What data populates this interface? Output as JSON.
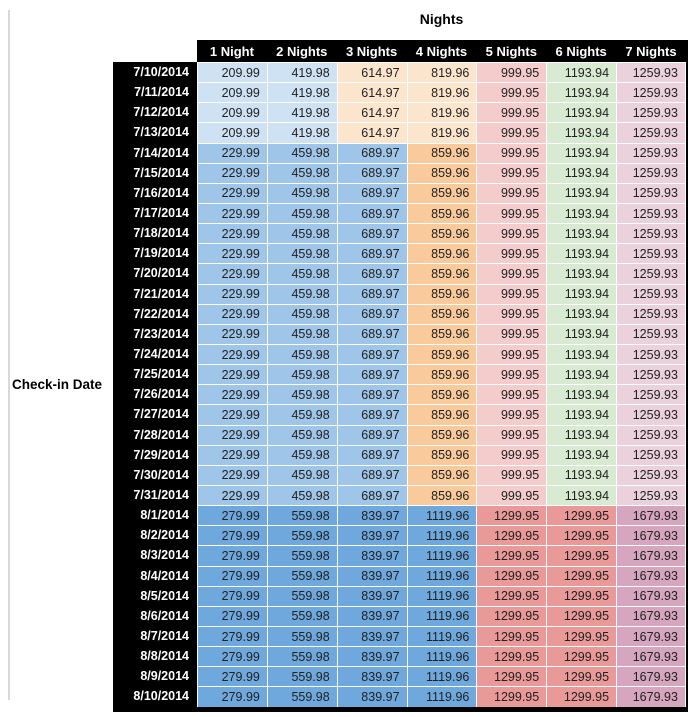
{
  "page": {
    "title": "Nights",
    "row_axis_label": "Check-in Date"
  },
  "palette": {
    "header_bg": "#000000",
    "header_text": "#ffffff",
    "blue_light": "#cfe2f3",
    "blue_medium": "#9fc5e8",
    "blue_dark": "#6fa8dc",
    "orange_light": "#fce5cd",
    "orange_medium": "#f9cb9c",
    "red_light": "#f4cccc",
    "red_medium": "#ea9999",
    "green_light": "#d9ead3",
    "magenta_light": "#ead1dc",
    "magenta_medium": "#d5a6bd"
  },
  "chart_data": {
    "type": "table",
    "title": "Nights",
    "row_axis_label": "Check-in Date",
    "columns": [
      "1 Night",
      "2 Nights",
      "3 Nights",
      "4 Nights",
      "5 Nights",
      "6 Nights",
      "7 Nights"
    ],
    "rows": [
      {
        "date": "7/10/2014",
        "values": [
          "209.99",
          "419.98",
          "614.97",
          "819.96",
          "999.95",
          "1193.94",
          "1259.93"
        ],
        "colors": [
          "blue_light",
          "blue_light",
          "orange_light",
          "orange_light",
          "red_light",
          "green_light",
          "magenta_light"
        ]
      },
      {
        "date": "7/11/2014",
        "values": [
          "209.99",
          "419.98",
          "614.97",
          "819.96",
          "999.95",
          "1193.94",
          "1259.93"
        ],
        "colors": [
          "blue_light",
          "blue_light",
          "orange_light",
          "orange_light",
          "red_light",
          "green_light",
          "magenta_light"
        ]
      },
      {
        "date": "7/12/2014",
        "values": [
          "209.99",
          "419.98",
          "614.97",
          "819.96",
          "999.95",
          "1193.94",
          "1259.93"
        ],
        "colors": [
          "blue_light",
          "blue_light",
          "orange_light",
          "orange_light",
          "red_light",
          "green_light",
          "magenta_light"
        ]
      },
      {
        "date": "7/13/2014",
        "values": [
          "209.99",
          "419.98",
          "614.97",
          "819.96",
          "999.95",
          "1193.94",
          "1259.93"
        ],
        "colors": [
          "blue_light",
          "blue_light",
          "orange_light",
          "orange_light",
          "red_light",
          "green_light",
          "magenta_light"
        ]
      },
      {
        "date": "7/14/2014",
        "values": [
          "229.99",
          "459.98",
          "689.97",
          "859.96",
          "999.95",
          "1193.94",
          "1259.93"
        ],
        "colors": [
          "blue_medium",
          "blue_medium",
          "blue_medium",
          "orange_medium",
          "red_light",
          "green_light",
          "magenta_light"
        ]
      },
      {
        "date": "7/15/2014",
        "values": [
          "229.99",
          "459.98",
          "689.97",
          "859.96",
          "999.95",
          "1193.94",
          "1259.93"
        ],
        "colors": [
          "blue_medium",
          "blue_medium",
          "blue_medium",
          "orange_medium",
          "red_light",
          "green_light",
          "magenta_light"
        ]
      },
      {
        "date": "7/16/2014",
        "values": [
          "229.99",
          "459.98",
          "689.97",
          "859.96",
          "999.95",
          "1193.94",
          "1259.93"
        ],
        "colors": [
          "blue_medium",
          "blue_medium",
          "blue_medium",
          "orange_medium",
          "red_light",
          "green_light",
          "magenta_light"
        ]
      },
      {
        "date": "7/17/2014",
        "values": [
          "229.99",
          "459.98",
          "689.97",
          "859.96",
          "999.95",
          "1193.94",
          "1259.93"
        ],
        "colors": [
          "blue_medium",
          "blue_medium",
          "blue_medium",
          "orange_medium",
          "red_light",
          "green_light",
          "magenta_light"
        ]
      },
      {
        "date": "7/18/2014",
        "values": [
          "229.99",
          "459.98",
          "689.97",
          "859.96",
          "999.95",
          "1193.94",
          "1259.93"
        ],
        "colors": [
          "blue_medium",
          "blue_medium",
          "blue_medium",
          "orange_medium",
          "red_light",
          "green_light",
          "magenta_light"
        ]
      },
      {
        "date": "7/19/2014",
        "values": [
          "229.99",
          "459.98",
          "689.97",
          "859.96",
          "999.95",
          "1193.94",
          "1259.93"
        ],
        "colors": [
          "blue_medium",
          "blue_medium",
          "blue_medium",
          "orange_medium",
          "red_light",
          "green_light",
          "magenta_light"
        ]
      },
      {
        "date": "7/20/2014",
        "values": [
          "229.99",
          "459.98",
          "689.97",
          "859.96",
          "999.95",
          "1193.94",
          "1259.93"
        ],
        "colors": [
          "blue_medium",
          "blue_medium",
          "blue_medium",
          "orange_medium",
          "red_light",
          "green_light",
          "magenta_light"
        ]
      },
      {
        "date": "7/21/2014",
        "values": [
          "229.99",
          "459.98",
          "689.97",
          "859.96",
          "999.95",
          "1193.94",
          "1259.93"
        ],
        "colors": [
          "blue_medium",
          "blue_medium",
          "blue_medium",
          "orange_medium",
          "red_light",
          "green_light",
          "magenta_light"
        ]
      },
      {
        "date": "7/22/2014",
        "values": [
          "229.99",
          "459.98",
          "689.97",
          "859.96",
          "999.95",
          "1193.94",
          "1259.93"
        ],
        "colors": [
          "blue_medium",
          "blue_medium",
          "blue_medium",
          "orange_medium",
          "red_light",
          "green_light",
          "magenta_light"
        ]
      },
      {
        "date": "7/23/2014",
        "values": [
          "229.99",
          "459.98",
          "689.97",
          "859.96",
          "999.95",
          "1193.94",
          "1259.93"
        ],
        "colors": [
          "blue_medium",
          "blue_medium",
          "blue_medium",
          "orange_medium",
          "red_light",
          "green_light",
          "magenta_light"
        ]
      },
      {
        "date": "7/24/2014",
        "values": [
          "229.99",
          "459.98",
          "689.97",
          "859.96",
          "999.95",
          "1193.94",
          "1259.93"
        ],
        "colors": [
          "blue_medium",
          "blue_medium",
          "blue_medium",
          "orange_medium",
          "red_light",
          "green_light",
          "magenta_light"
        ]
      },
      {
        "date": "7/25/2014",
        "values": [
          "229.99",
          "459.98",
          "689.97",
          "859.96",
          "999.95",
          "1193.94",
          "1259.93"
        ],
        "colors": [
          "blue_medium",
          "blue_medium",
          "blue_medium",
          "orange_medium",
          "red_light",
          "green_light",
          "magenta_light"
        ]
      },
      {
        "date": "7/26/2014",
        "values": [
          "229.99",
          "459.98",
          "689.97",
          "859.96",
          "999.95",
          "1193.94",
          "1259.93"
        ],
        "colors": [
          "blue_medium",
          "blue_medium",
          "blue_medium",
          "orange_medium",
          "red_light",
          "green_light",
          "magenta_light"
        ]
      },
      {
        "date": "7/27/2014",
        "values": [
          "229.99",
          "459.98",
          "689.97",
          "859.96",
          "999.95",
          "1193.94",
          "1259.93"
        ],
        "colors": [
          "blue_medium",
          "blue_medium",
          "blue_medium",
          "orange_medium",
          "red_light",
          "green_light",
          "magenta_light"
        ]
      },
      {
        "date": "7/28/2014",
        "values": [
          "229.99",
          "459.98",
          "689.97",
          "859.96",
          "999.95",
          "1193.94",
          "1259.93"
        ],
        "colors": [
          "blue_medium",
          "blue_medium",
          "blue_medium",
          "orange_medium",
          "red_light",
          "green_light",
          "magenta_light"
        ]
      },
      {
        "date": "7/29/2014",
        "values": [
          "229.99",
          "459.98",
          "689.97",
          "859.96",
          "999.95",
          "1193.94",
          "1259.93"
        ],
        "colors": [
          "blue_medium",
          "blue_medium",
          "blue_medium",
          "orange_medium",
          "red_light",
          "green_light",
          "magenta_light"
        ]
      },
      {
        "date": "7/30/2014",
        "values": [
          "229.99",
          "459.98",
          "689.97",
          "859.96",
          "999.95",
          "1193.94",
          "1259.93"
        ],
        "colors": [
          "blue_medium",
          "blue_medium",
          "blue_medium",
          "orange_medium",
          "red_light",
          "green_light",
          "magenta_light"
        ]
      },
      {
        "date": "7/31/2014",
        "values": [
          "229.99",
          "459.98",
          "689.97",
          "859.96",
          "999.95",
          "1193.94",
          "1259.93"
        ],
        "colors": [
          "blue_medium",
          "blue_medium",
          "blue_medium",
          "orange_medium",
          "red_light",
          "green_light",
          "magenta_light"
        ]
      },
      {
        "date": "8/1/2014",
        "values": [
          "279.99",
          "559.98",
          "839.97",
          "1119.96",
          "1299.95",
          "1299.95",
          "1679.93"
        ],
        "colors": [
          "blue_dark",
          "blue_dark",
          "blue_dark",
          "blue_dark",
          "red_medium",
          "red_medium",
          "magenta_medium"
        ]
      },
      {
        "date": "8/2/2014",
        "values": [
          "279.99",
          "559.98",
          "839.97",
          "1119.96",
          "1299.95",
          "1299.95",
          "1679.93"
        ],
        "colors": [
          "blue_dark",
          "blue_dark",
          "blue_dark",
          "blue_dark",
          "red_medium",
          "red_medium",
          "magenta_medium"
        ]
      },
      {
        "date": "8/3/2014",
        "values": [
          "279.99",
          "559.98",
          "839.97",
          "1119.96",
          "1299.95",
          "1299.95",
          "1679.93"
        ],
        "colors": [
          "blue_dark",
          "blue_dark",
          "blue_dark",
          "blue_dark",
          "red_medium",
          "red_medium",
          "magenta_medium"
        ]
      },
      {
        "date": "8/4/2014",
        "values": [
          "279.99",
          "559.98",
          "839.97",
          "1119.96",
          "1299.95",
          "1299.95",
          "1679.93"
        ],
        "colors": [
          "blue_dark",
          "blue_dark",
          "blue_dark",
          "blue_dark",
          "red_medium",
          "red_medium",
          "magenta_medium"
        ]
      },
      {
        "date": "8/5/2014",
        "values": [
          "279.99",
          "559.98",
          "839.97",
          "1119.96",
          "1299.95",
          "1299.95",
          "1679.93"
        ],
        "colors": [
          "blue_dark",
          "blue_dark",
          "blue_dark",
          "blue_dark",
          "red_medium",
          "red_medium",
          "magenta_medium"
        ]
      },
      {
        "date": "8/6/2014",
        "values": [
          "279.99",
          "559.98",
          "839.97",
          "1119.96",
          "1299.95",
          "1299.95",
          "1679.93"
        ],
        "colors": [
          "blue_dark",
          "blue_dark",
          "blue_dark",
          "blue_dark",
          "red_medium",
          "red_medium",
          "magenta_medium"
        ]
      },
      {
        "date": "8/7/2014",
        "values": [
          "279.99",
          "559.98",
          "839.97",
          "1119.96",
          "1299.95",
          "1299.95",
          "1679.93"
        ],
        "colors": [
          "blue_dark",
          "blue_dark",
          "blue_dark",
          "blue_dark",
          "red_medium",
          "red_medium",
          "magenta_medium"
        ]
      },
      {
        "date": "8/8/2014",
        "values": [
          "279.99",
          "559.98",
          "839.97",
          "1119.96",
          "1299.95",
          "1299.95",
          "1679.93"
        ],
        "colors": [
          "blue_dark",
          "blue_dark",
          "blue_dark",
          "blue_dark",
          "red_medium",
          "red_medium",
          "magenta_medium"
        ]
      },
      {
        "date": "8/9/2014",
        "values": [
          "279.99",
          "559.98",
          "839.97",
          "1119.96",
          "1299.95",
          "1299.95",
          "1679.93"
        ],
        "colors": [
          "blue_dark",
          "blue_dark",
          "blue_dark",
          "blue_dark",
          "red_medium",
          "red_medium",
          "magenta_medium"
        ]
      },
      {
        "date": "8/10/2014",
        "values": [
          "279.99",
          "559.98",
          "839.97",
          "1119.96",
          "1299.95",
          "1299.95",
          "1679.93"
        ],
        "colors": [
          "blue_dark",
          "blue_dark",
          "blue_dark",
          "blue_dark",
          "red_medium",
          "red_medium",
          "magenta_medium"
        ]
      }
    ]
  }
}
